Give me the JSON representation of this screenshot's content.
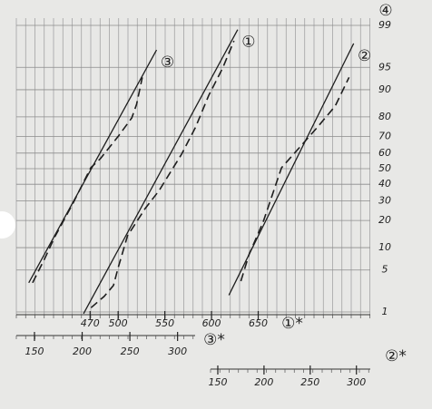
{
  "chart_data": {
    "type": "line",
    "scale": "probability",
    "ylim": [
      1,
      99
    ],
    "yticks": [
      1,
      5,
      10,
      20,
      30,
      40,
      50,
      60,
      70,
      80,
      90,
      95,
      99
    ],
    "y_axis_label": "④",
    "grid": true,
    "x_axes": [
      {
        "label": "①*",
        "xlim": [
          391,
          770
        ],
        "xticks": [
          470,
          500,
          550,
          600,
          650
        ]
      },
      {
        "label": "③*",
        "xlim": [
          131,
          502
        ],
        "xticks": [
          150,
          200,
          250,
          300
        ]
      },
      {
        "label": "②*",
        "xlim": [
          -68,
          315
        ],
        "xticks": [
          150,
          200,
          250,
          300
        ]
      }
    ],
    "series": [
      {
        "name": "③",
        "x_axis": 1,
        "color": "#1e1e1e",
        "style": "solid",
        "x": [
          144,
          278
        ],
        "values": [
          3.2,
          97.3
        ]
      },
      {
        "x_axis": 1,
        "color": "#1e1e1e",
        "style": "dashed",
        "x": [
          148,
          161,
          171,
          190,
          209,
          219,
          238,
          252,
          257,
          263
        ],
        "values": [
          3.2,
          7.3,
          13.2,
          28.3,
          50.6,
          56.4,
          70.2,
          79.5,
          85.2,
          93.1
        ]
      },
      {
        "name": "①",
        "x_axis": 0,
        "color": "#1e1e1e",
        "style": "solid",
        "x": [
          463,
          628
        ],
        "values": [
          0.93,
          98.8
        ]
      },
      {
        "x_axis": 0,
        "color": "#1e1e1e",
        "style": "dashed",
        "x": [
          471,
          485,
          495,
          500,
          510,
          529,
          544,
          568,
          583,
          597,
          612,
          624
        ],
        "values": [
          1.2,
          1.9,
          2.9,
          5.4,
          13.8,
          25.9,
          36.2,
          59.3,
          75.1,
          88.3,
          94.9,
          98.1
        ]
      },
      {
        "name": "②",
        "x_axis": 2,
        "color": "#1e1e1e",
        "style": "solid",
        "x": [
          162,
          297
        ],
        "values": [
          2.0,
          97.9
        ]
      },
      {
        "x_axis": 2,
        "color": "#1e1e1e",
        "style": "dashed",
        "x": [
          175,
          184,
          199,
          219,
          238,
          258,
          277,
          292
        ],
        "values": [
          3.4,
          8.3,
          19.3,
          50.6,
          63.2,
          75.1,
          84.5,
          93.1
        ]
      }
    ]
  }
}
